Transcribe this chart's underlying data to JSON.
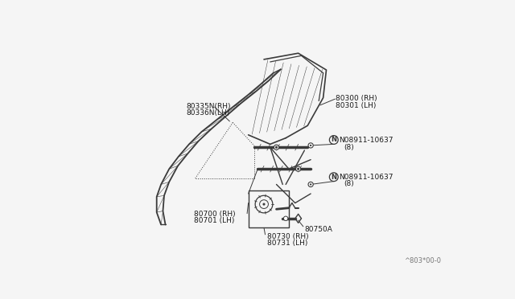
{
  "bg_color": "#f5f5f5",
  "line_color": "#3a3a3a",
  "label_color": "#1a1a1a",
  "diagram_code": "^803*00-0",
  "labels": {
    "80335N_RH": "80335N(RH)",
    "80336N_LH": "80336N(LH)",
    "80300_RH": "80300 (RH)",
    "80301_LH": "80301 (LH)",
    "N08911_top": "N08911-10637",
    "N08911_top_sub": "(8)",
    "N08911_bot": "N08911-10637",
    "N08911_bot_sub": "(8)",
    "80700_RH": "80700 (RH)",
    "80701_LH": "80701 (LH)",
    "80730_RH": "80730 (RH)",
    "80731_LH": "80731 (LH)",
    "80750A": "80750A"
  }
}
